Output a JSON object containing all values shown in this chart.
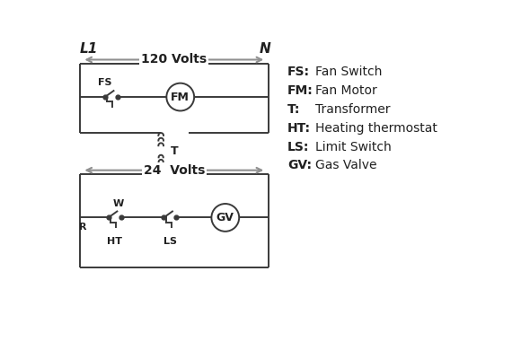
{
  "bg_color": "#ffffff",
  "line_color": "#3a3a3a",
  "arrow_color": "#909090",
  "text_color": "#202020",
  "legend_items": [
    [
      "FS:",
      "Fan Switch"
    ],
    [
      "FM:",
      "Fan Motor"
    ],
    [
      "T:",
      "Transformer"
    ],
    [
      "HT:",
      "Heating thermostat"
    ],
    [
      "LS:",
      "Limit Switch"
    ],
    [
      "GV:",
      "Gas Valve"
    ]
  ],
  "L1_label": "L1",
  "N_label": "N",
  "volts120_label": "120 Volts",
  "volts24_label": "24  Volts",
  "FS_label": "FS",
  "FM_label": "FM",
  "T_label": "T",
  "R_label": "R",
  "W_label": "W",
  "HT_label": "HT",
  "LS_label": "LS",
  "GV_label": "GV"
}
